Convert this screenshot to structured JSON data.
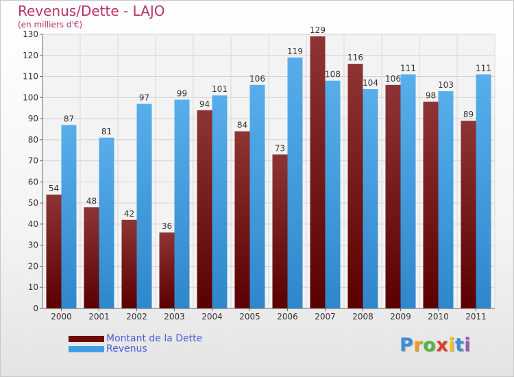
{
  "title": "Revenus/Dette - LAJO",
  "subtitle": "(en milliers d'€)",
  "colors": {
    "debt": "#8b2a2a",
    "revenue": "#4aa6e6",
    "title": "#b8306a",
    "legend_text": "#4a5bd8"
  },
  "legend": [
    {
      "label": "Montant de la Dette",
      "color": "#6b0a0a"
    },
    {
      "label": "Revenus",
      "color": "#3f9fe6"
    }
  ],
  "logo": {
    "letters": [
      "P",
      "r",
      "o",
      "x",
      "i",
      "t",
      "i"
    ],
    "colors": [
      "#3a8fd8",
      "#f39a1c",
      "#52b83a",
      "#e23a2a",
      "#f5c21a",
      "#3a8fd8",
      "#9b59b6"
    ]
  },
  "chart_data": {
    "type": "bar",
    "categories": [
      "2000",
      "2001",
      "2002",
      "2003",
      "2004",
      "2005",
      "2006",
      "2007",
      "2008",
      "2009",
      "2010",
      "2011"
    ],
    "series": [
      {
        "name": "Montant de la Dette",
        "values": [
          54,
          48,
          42,
          36,
          94,
          84,
          73,
          129,
          116,
          106,
          98,
          89
        ]
      },
      {
        "name": "Revenus",
        "values": [
          87,
          81,
          97,
          99,
          101,
          106,
          119,
          108,
          104,
          111,
          103,
          111
        ]
      }
    ],
    "ylim": [
      0,
      130
    ],
    "yticks": [
      0,
      10,
      20,
      30,
      40,
      50,
      60,
      70,
      80,
      90,
      100,
      110,
      120,
      130
    ],
    "grid": true,
    "legend_position": "bottom-left"
  }
}
